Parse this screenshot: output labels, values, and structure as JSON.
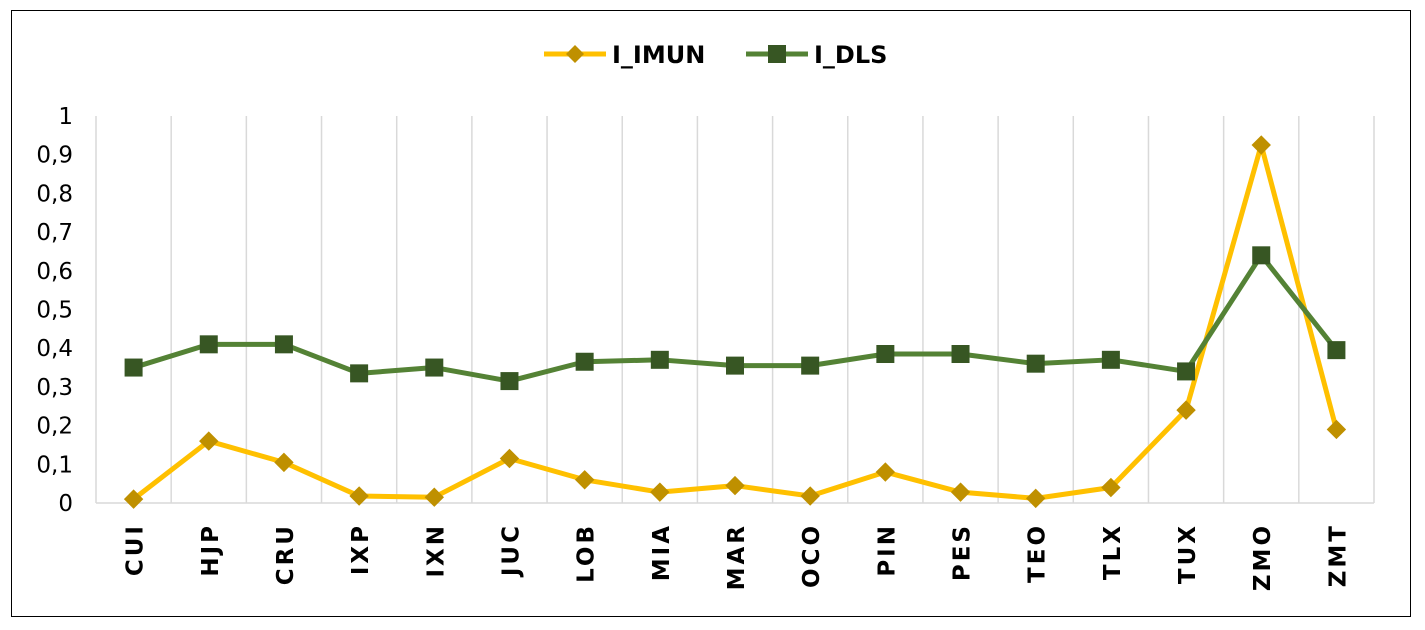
{
  "chart_data": {
    "type": "line",
    "title": "",
    "xlabel": "",
    "ylabel": "",
    "categories": [
      "CUI",
      "HJP",
      "CRU",
      "IXP",
      "IXN",
      "JUC",
      "LOB",
      "MIA",
      "MAR",
      "OCO",
      "PIN",
      "PES",
      "TEO",
      "TLX",
      "TUX",
      "ZMO",
      "ZMT"
    ],
    "ylim": [
      0,
      1
    ],
    "y_ticks": [
      "0",
      "0,1",
      "0,2",
      "0,3",
      "0,4",
      "0,5",
      "0,6",
      "0,7",
      "0,8",
      "0,9",
      "1"
    ],
    "grid": "vertical",
    "legend_position": "top-center",
    "series": [
      {
        "name": "I_IMUN",
        "color": "#FFC000",
        "marker_color": "#BF9000",
        "marker": "diamond",
        "values": [
          0.01,
          0.16,
          0.105,
          0.018,
          0.015,
          0.115,
          0.06,
          0.028,
          0.045,
          0.018,
          0.08,
          0.028,
          0.012,
          0.04,
          0.24,
          0.925,
          0.19
        ]
      },
      {
        "name": "I_DLS",
        "color": "#548235",
        "marker_color": "#375623",
        "marker": "square",
        "values": [
          0.35,
          0.41,
          0.41,
          0.335,
          0.35,
          0.315,
          0.365,
          0.37,
          0.355,
          0.355,
          0.385,
          0.385,
          0.36,
          0.37,
          0.34,
          0.64,
          0.395
        ]
      }
    ]
  }
}
